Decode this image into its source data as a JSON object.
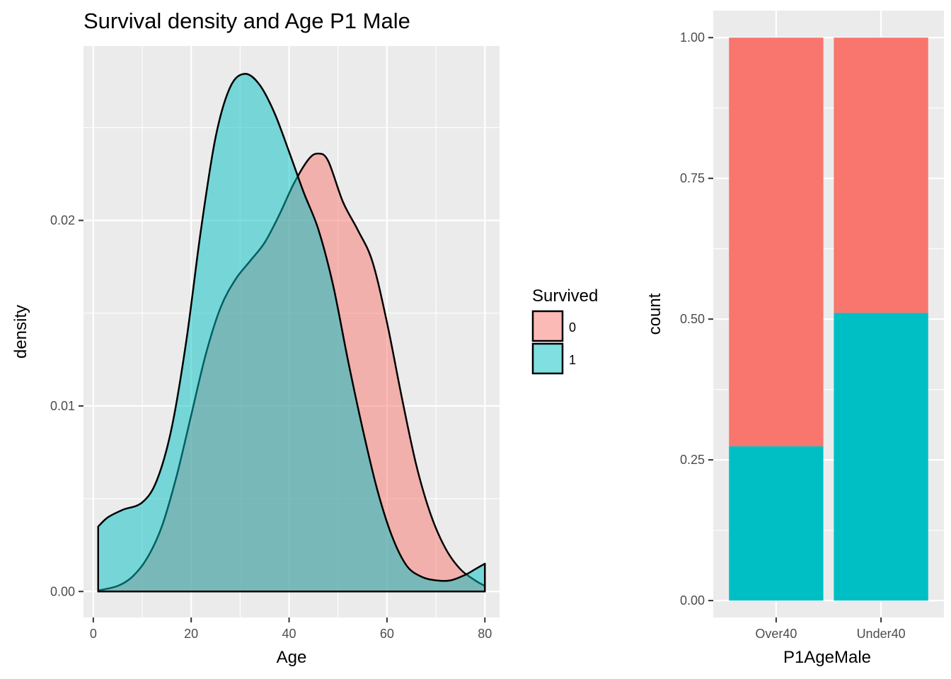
{
  "chart_data": [
    {
      "type": "area",
      "subtype": "density",
      "title": "Survival density and Age P1 Male",
      "xlabel": "Age",
      "ylabel": "density",
      "xlim": [
        -2,
        83
      ],
      "ylim": [
        -0.0014,
        0.0294
      ],
      "xticks": [
        0,
        20,
        40,
        60,
        80
      ],
      "xtick_labels": [
        "0",
        "20",
        "40",
        "60",
        "80"
      ],
      "yticks": [
        0,
        0.01,
        0.02
      ],
      "ytick_labels": [
        "0.00",
        "0.01",
        "0.02"
      ],
      "grid": true,
      "alpha": 0.5,
      "legend": {
        "title": "Survived",
        "position": "right"
      },
      "series": [
        {
          "name": "0",
          "color": "#F8766D",
          "x": [
            1,
            5,
            8,
            11,
            14,
            17,
            20,
            23,
            26,
            29,
            32,
            35,
            38,
            41,
            44,
            46,
            48,
            51,
            54,
            57,
            60,
            63,
            66,
            69,
            72,
            75,
            78,
            80
          ],
          "y": [
            5e-05,
            0.0003,
            0.0008,
            0.0018,
            0.0035,
            0.0062,
            0.0095,
            0.0128,
            0.0153,
            0.0168,
            0.0178,
            0.0188,
            0.0203,
            0.022,
            0.0233,
            0.0236,
            0.0232,
            0.021,
            0.0195,
            0.0178,
            0.0145,
            0.0105,
            0.0068,
            0.0041,
            0.0023,
            0.0012,
            0.0006,
            0.0003
          ]
        },
        {
          "name": "1",
          "color": "#00BFC4",
          "x": [
            1,
            3,
            6,
            10,
            13,
            16,
            19,
            22,
            25,
            28,
            31,
            34,
            37,
            40,
            43,
            46,
            49,
            52,
            55,
            58,
            61,
            64,
            67,
            70,
            73,
            76,
            78,
            80
          ],
          "y": [
            0.0035,
            0.004,
            0.0044,
            0.0048,
            0.006,
            0.0088,
            0.0135,
            0.0195,
            0.0245,
            0.0272,
            0.0279,
            0.0273,
            0.0258,
            0.0237,
            0.0215,
            0.0195,
            0.0165,
            0.0125,
            0.0088,
            0.0055,
            0.003,
            0.0014,
            0.0008,
            0.0006,
            0.0006,
            0.0009,
            0.0012,
            0.0015
          ]
        }
      ]
    },
    {
      "type": "bar",
      "subtype": "stacked-proportion",
      "xlabel": "P1AgeMale",
      "ylabel": "count",
      "categories": [
        "Over40",
        "Under40"
      ],
      "ylim": [
        -0.03,
        1.048
      ],
      "yticks": [
        0,
        0.25,
        0.5,
        0.75,
        1
      ],
      "ytick_labels": [
        "0.00",
        "0.25",
        "0.50",
        "0.75",
        "1.00"
      ],
      "grid": true,
      "series": [
        {
          "name": "1",
          "color": "#00BFC4",
          "values": [
            0.274,
            0.511
          ]
        },
        {
          "name": "0",
          "color": "#F8766D",
          "values": [
            0.726,
            0.489
          ]
        }
      ]
    }
  ]
}
